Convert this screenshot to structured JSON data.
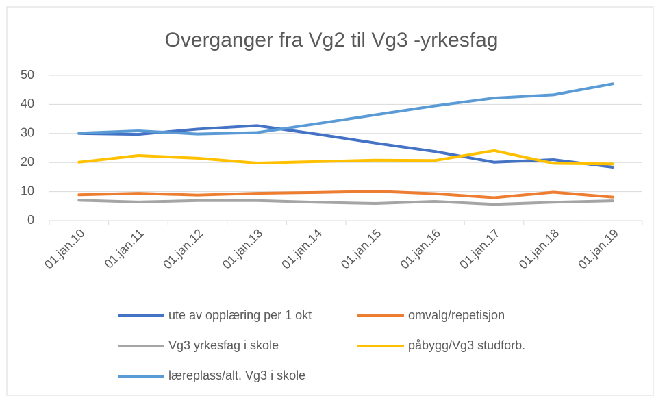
{
  "chart_data": {
    "type": "line",
    "title": "Overganger fra Vg2 til Vg3 -yrkesfag",
    "categories": [
      "01.jan.10",
      "01.jan.11",
      "01.jan.12",
      "01.jan.13",
      "01.jan.14",
      "01.jan.15",
      "01.jan.16",
      "01.jan.17",
      "01.jan.18",
      "01.jan.19"
    ],
    "series": [
      {
        "name": "ute av opplæring per 1 okt",
        "color": "#4472c4",
        "values": [
          30,
          29.7,
          31.5,
          32.7,
          29.8,
          26.7,
          23.8,
          20.1,
          21,
          18.4
        ]
      },
      {
        "name": "omvalg/repetisjon",
        "color": "#ed7d31",
        "values": [
          8.9,
          9.4,
          8.8,
          9.4,
          9.7,
          10.1,
          9.3,
          7.9,
          9.8,
          8.1
        ]
      },
      {
        "name": "Vg3 yrkesfag i skole",
        "color": "#a5a5a5",
        "values": [
          7,
          6.4,
          6.9,
          6.9,
          6.3,
          5.9,
          6.6,
          5.6,
          6.3,
          6.8
        ]
      },
      {
        "name": "påbygg/Vg3 studforb.",
        "color": "#ffc000",
        "values": [
          20.1,
          22.4,
          21.5,
          19.8,
          20.3,
          20.8,
          20.7,
          24.1,
          19.7,
          19.5
        ]
      },
      {
        "name": "læreplass/alt. Vg3 i skole",
        "color": "#5b9bd5",
        "values": [
          30.1,
          30.9,
          29.8,
          30.3,
          33.3,
          36.4,
          39.5,
          42.2,
          43.3,
          47.1
        ]
      }
    ],
    "ylim": [
      0,
      50
    ],
    "yticks": [
      0,
      10,
      20,
      30,
      40,
      50
    ],
    "grid": true,
    "legend": "bottom"
  }
}
